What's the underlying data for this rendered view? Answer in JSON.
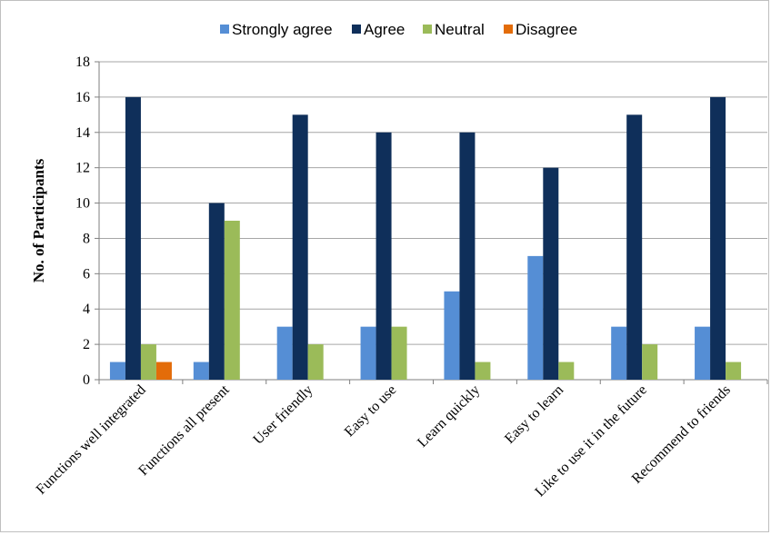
{
  "chart_data": {
    "type": "bar",
    "title": "",
    "xlabel": "",
    "ylabel": "No. of Participants",
    "ylim": [
      0,
      18
    ],
    "ytick_step": 2,
    "grid": true,
    "legend_position": "top",
    "categories": [
      "Functions well integrated",
      "Functions all present",
      "User friendly",
      "Easy to use",
      "Learn quickly",
      "Easy to learn",
      "Like to use it in the future",
      "Recommend to friends"
    ],
    "series": [
      {
        "name": "Strongly agree",
        "color": "#558ed5",
        "values": [
          1,
          1,
          3,
          3,
          5,
          7,
          3,
          3
        ]
      },
      {
        "name": "Agree",
        "color": "#0f2f5a",
        "values": [
          16,
          10,
          15,
          14,
          14,
          12,
          15,
          16
        ]
      },
      {
        "name": "Neutral",
        "color": "#9bbb59",
        "values": [
          2,
          9,
          2,
          3,
          1,
          1,
          2,
          1
        ]
      },
      {
        "name": "Disagree",
        "color": "#e36c09",
        "values": [
          1,
          0,
          0,
          0,
          0,
          0,
          0,
          0
        ]
      }
    ]
  }
}
